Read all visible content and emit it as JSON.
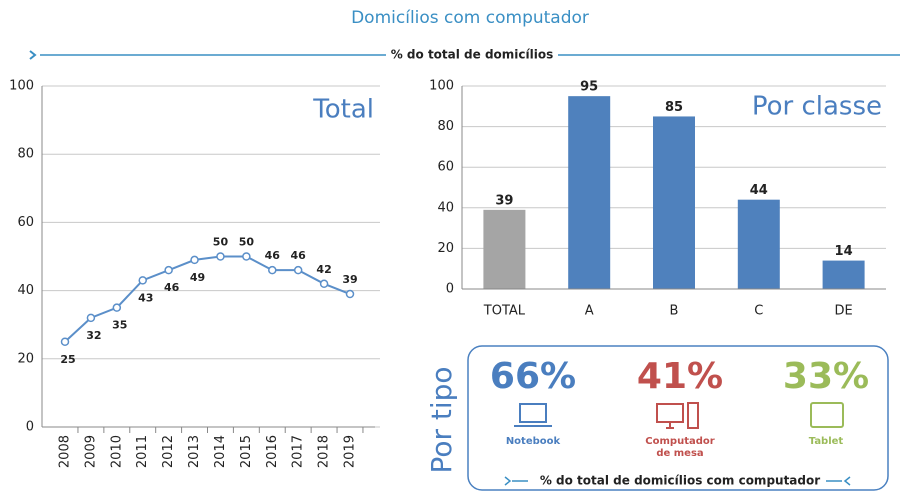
{
  "header": {
    "title": "Domicílios com computador",
    "subtitle": "% do total de domicílios"
  },
  "chart_data": [
    {
      "type": "line",
      "title": "Total",
      "categories": [
        "2008",
        "2009",
        "2010",
        "2011",
        "2012",
        "2013",
        "2014",
        "2015",
        "2016",
        "2017",
        "2018",
        "2019"
      ],
      "values": [
        25,
        32,
        35,
        43,
        46,
        49,
        50,
        50,
        46,
        46,
        42,
        39
      ],
      "color": "#5b8fc9",
      "ylim": [
        0,
        100
      ],
      "yticks": [
        0,
        20,
        40,
        60,
        80,
        100
      ],
      "grid": true
    },
    {
      "type": "bar",
      "title": "Por classe",
      "categories": [
        "TOTAL",
        "A",
        "B",
        "C",
        "DE"
      ],
      "values": [
        39,
        95,
        85,
        44,
        14
      ],
      "colors": [
        "#a5a5a5",
        "#4f81bd",
        "#4f81bd",
        "#4f81bd",
        "#4f81bd"
      ],
      "ylim": [
        0,
        100
      ],
      "yticks": [
        0,
        20,
        40,
        60,
        80,
        100
      ],
      "grid": true
    }
  ],
  "por_tipo": {
    "title": "Por tipo",
    "items": [
      {
        "percent": "66%",
        "label": "Notebook",
        "color": "#4a7ebf"
      },
      {
        "percent": "41%",
        "label": "Computador de mesa",
        "color": "#c0504d"
      },
      {
        "percent": "33%",
        "label": "Tablet",
        "color": "#9bbb59"
      }
    ],
    "note": "% do total de domicílios com computador"
  }
}
